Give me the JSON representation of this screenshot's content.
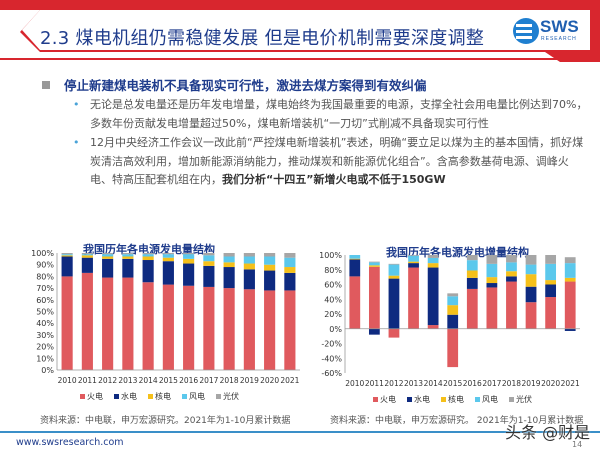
{
  "header": {
    "title": "2.3 煤电机组仍需稳健发展 但是电价机制需要深度调整",
    "logo": "SWS RESEARCH"
  },
  "section": {
    "heading": "停止新建煤电装机不具备现实可行性，激进去煤方案得到有效纠偏",
    "bullets": [
      {
        "text": "无论是总发电量还是历年发电增量，煤电始终为我国最重要的电源，支撑全社会用电量比例达到70%，多数年份贡献发电增量超过50%，煤电新增装机“一刀切”式削减不具备现实可行性",
        "bold": ""
      },
      {
        "text": "12月中央经济工作会议一改此前“严控煤电新增装机”表述，明确“要立足以煤为主的基本国情，抓好煤炭清洁高效利用，增加新能源消纳能力，推动煤炭和新能源优化组合”。含高参数基荷电源、调峰火电、特高压配套机组在内，",
        "bold": "我们分析“十四五”新增火电或不低于150GW"
      }
    ]
  },
  "colors": {
    "火电": "#e05a5e",
    "水电": "#0e2a80",
    "核电": "#f5c01a",
    "风电": "#5bc8ec",
    "光伏": "#a6a6a6"
  },
  "chart_data": [
    {
      "type": "bar",
      "stacked": true,
      "title": "我国历年各电源发电量结构",
      "xlabel": "",
      "ylabel": "",
      "ylim": [
        0,
        100
      ],
      "yticks": [
        "0%",
        "10%",
        "20%",
        "30%",
        "40%",
        "50%",
        "60%",
        "70%",
        "80%",
        "90%",
        "100%"
      ],
      "ytick_values": [
        0,
        10,
        20,
        30,
        40,
        50,
        60,
        70,
        80,
        90,
        100
      ],
      "categories": [
        "2010",
        "2011",
        "2012",
        "2013",
        "2014",
        "2015",
        "2016",
        "2017",
        "2018",
        "2019",
        "2020",
        "2021"
      ],
      "series": [
        {
          "name": "火电",
          "values": [
            80,
            83,
            79,
            79,
            75,
            73,
            72,
            71,
            70,
            69,
            68,
            68
          ]
        },
        {
          "name": "水电",
          "values": [
            17,
            13,
            16,
            16,
            19,
            20,
            19,
            18,
            18,
            17,
            17,
            15
          ]
        },
        {
          "name": "核电",
          "values": [
            1,
            2,
            2,
            2,
            3,
            3,
            4,
            4,
            4,
            5,
            5,
            5
          ]
        },
        {
          "name": "风电",
          "values": [
            1,
            1,
            2,
            2,
            2,
            3,
            4,
            5,
            5,
            6,
            7,
            8
          ]
        },
        {
          "name": "光伏",
          "values": [
            1,
            1,
            1,
            1,
            1,
            1,
            1,
            2,
            3,
            3,
            3,
            4
          ]
        }
      ],
      "legend": "bottom",
      "source": "资料来源：中电联，申万宏源研究。2021年为1-10月累计数据"
    },
    {
      "type": "bar",
      "stacked": true,
      "title": "我国历年各电源发电增量结构",
      "xlabel": "",
      "ylabel": "",
      "ylim": [
        -60,
        100
      ],
      "yticks": [
        "-60%",
        "-40%",
        "-20%",
        "0%",
        "20%",
        "40%",
        "60%",
        "80%",
        "100%"
      ],
      "ytick_values": [
        -60,
        -40,
        -20,
        0,
        20,
        40,
        60,
        80,
        100
      ],
      "categories": [
        "2010",
        "2011",
        "2012",
        "2013",
        "2014",
        "2015",
        "2016",
        "2017",
        "2018",
        "2019",
        "2020",
        "2021"
      ],
      "series": [
        {
          "name": "火电",
          "values": [
            71,
            84,
            -12,
            83,
            5,
            -52,
            54,
            56,
            64,
            36,
            43,
            64
          ]
        },
        {
          "name": "水电",
          "values": [
            23,
            -8,
            68,
            6,
            78,
            19,
            15,
            6,
            7,
            21,
            17,
            -3
          ]
        },
        {
          "name": "核电",
          "values": [
            1,
            2,
            4,
            2,
            6,
            13,
            10,
            8,
            7,
            17,
            6,
            5
          ]
        },
        {
          "name": "风电",
          "values": [
            5,
            4,
            15,
            8,
            7,
            12,
            14,
            18,
            12,
            13,
            22,
            20
          ]
        },
        {
          "name": "光伏",
          "values": [
            0,
            1,
            1,
            1,
            4,
            4,
            7,
            12,
            10,
            13,
            12,
            8
          ]
        }
      ],
      "legend": "bottom",
      "source": "资料来源：中电联，申万宏源研究。 2021年为1-10月累计数据"
    }
  ],
  "footer": {
    "url": "www.swsresearch.com",
    "watermark": "头条 @财是",
    "page": "14"
  }
}
